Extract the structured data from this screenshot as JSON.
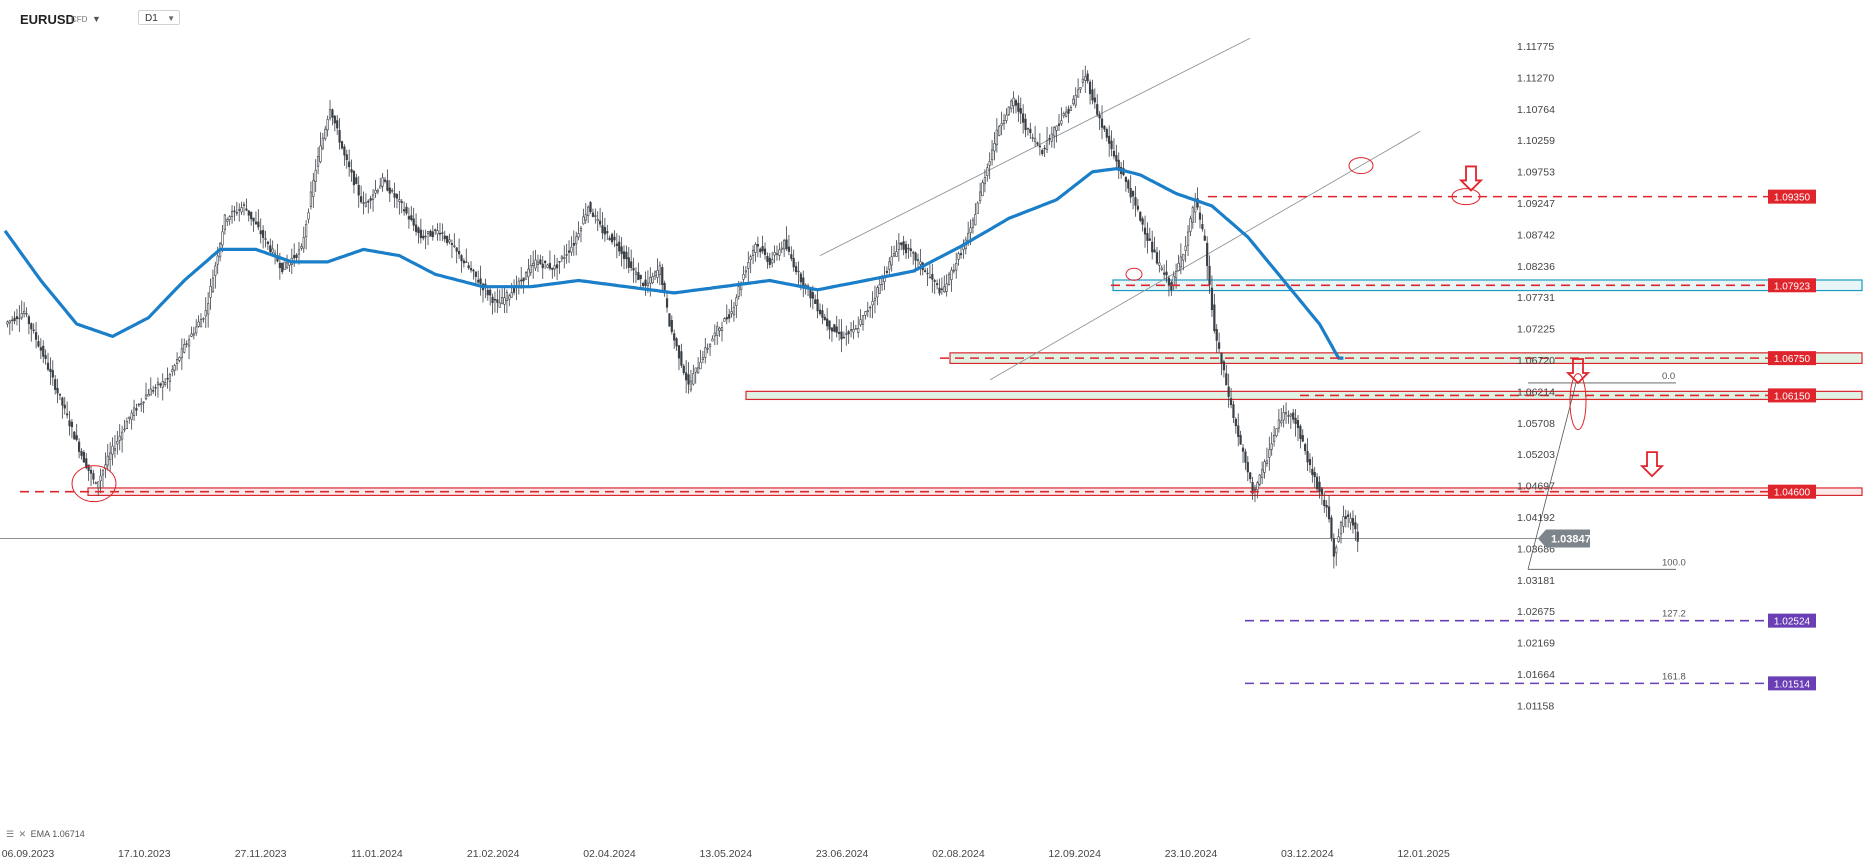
{
  "header": {
    "symbol": "EURUSD",
    "instrument_type": "CFD",
    "timeframe": "D1"
  },
  "legend": {
    "indicator": "EMA",
    "value": "1.06714"
  },
  "chart_data": {
    "type": "candlestick",
    "ylim": [
      1.0115,
      1.1225
    ],
    "y_ticks": [
      "1.11775",
      "1.11270",
      "1.10764",
      "1.10259",
      "1.09753",
      "1.09247",
      "1.08742",
      "1.08236",
      "1.07731",
      "1.07225",
      "1.06720",
      "1.06214",
      "1.05708",
      "1.05203",
      "1.04697",
      "1.04192",
      "1.03686",
      "1.03181",
      "1.02675",
      "1.02169",
      "1.01664",
      "1.01158"
    ],
    "x_ticks": [
      "06.09.2023",
      "17.10.2023",
      "27.11.2023",
      "11.01.2024",
      "21.02.2024",
      "02.04.2024",
      "13.05.2024",
      "23.06.2024",
      "02.08.2024",
      "12.09.2024",
      "23.10.2024",
      "03.12.2024",
      "12.01.2025"
    ],
    "current_price": "1.03847",
    "price_levels": [
      {
        "value": 1.0935,
        "label": "1.09350",
        "color": "#e0242b",
        "style": "dashed"
      },
      {
        "value": 1.07923,
        "label": "1.07923",
        "color": "#e0242b",
        "style": "dashed"
      },
      {
        "value": 1.0675,
        "label": "1.06750",
        "color": "#e0242b",
        "style": "dashed"
      },
      {
        "value": 1.0615,
        "label": "1.06150",
        "color": "#e0242b",
        "style": "dashed"
      },
      {
        "value": 1.046,
        "label": "1.04600",
        "color": "#e0242b",
        "style": "dashed"
      },
      {
        "value": 1.02524,
        "label": "1.02524",
        "color": "#6a3fb5",
        "style": "dashed"
      },
      {
        "value": 1.01514,
        "label": "1.01514",
        "color": "#6a3fb5",
        "style": "dashed"
      }
    ],
    "fibonacci": {
      "labels": [
        "0.0",
        "100.0",
        "127.2",
        "161.8"
      ],
      "high": 1.0635,
      "low": 1.0335
    },
    "ohlc_anchors": [
      [
        0,
        1.073
      ],
      [
        8,
        1.075
      ],
      [
        16,
        1.068
      ],
      [
        24,
        1.06
      ],
      [
        32,
        1.052
      ],
      [
        38,
        1.047
      ],
      [
        44,
        1.052
      ],
      [
        52,
        1.058
      ],
      [
        60,
        1.062
      ],
      [
        68,
        1.064
      ],
      [
        76,
        1.07
      ],
      [
        84,
        1.075
      ],
      [
        92,
        1.09
      ],
      [
        100,
        1.092
      ],
      [
        108,
        1.087
      ],
      [
        116,
        1.082
      ],
      [
        124,
        1.085
      ],
      [
        130,
        1.098
      ],
      [
        136,
        1.108
      ],
      [
        142,
        1.1
      ],
      [
        150,
        1.092
      ],
      [
        158,
        1.096
      ],
      [
        166,
        1.092
      ],
      [
        174,
        1.087
      ],
      [
        182,
        1.088
      ],
      [
        190,
        1.084
      ],
      [
        198,
        1.08
      ],
      [
        206,
        1.076
      ],
      [
        214,
        1.079
      ],
      [
        222,
        1.083
      ],
      [
        230,
        1.082
      ],
      [
        238,
        1.086
      ],
      [
        244,
        1.092
      ],
      [
        250,
        1.088
      ],
      [
        256,
        1.086
      ],
      [
        262,
        1.082
      ],
      [
        268,
        1.079
      ],
      [
        274,
        1.082
      ],
      [
        278,
        1.073
      ],
      [
        282,
        1.068
      ],
      [
        286,
        1.063
      ],
      [
        292,
        1.068
      ],
      [
        298,
        1.072
      ],
      [
        304,
        1.075
      ],
      [
        308,
        1.08
      ],
      [
        314,
        1.086
      ],
      [
        320,
        1.083
      ],
      [
        326,
        1.086
      ],
      [
        332,
        1.081
      ],
      [
        338,
        1.077
      ],
      [
        344,
        1.073
      ],
      [
        350,
        1.071
      ],
      [
        356,
        1.072
      ],
      [
        362,
        1.076
      ],
      [
        368,
        1.081
      ],
      [
        374,
        1.086
      ],
      [
        380,
        1.084
      ],
      [
        386,
        1.081
      ],
      [
        392,
        1.078
      ],
      [
        398,
        1.083
      ],
      [
        404,
        1.088
      ],
      [
        410,
        1.097
      ],
      [
        416,
        1.105
      ],
      [
        422,
        1.109
      ],
      [
        428,
        1.104
      ],
      [
        434,
        1.101
      ],
      [
        440,
        1.105
      ],
      [
        446,
        1.108
      ],
      [
        452,
        1.113
      ],
      [
        458,
        1.106
      ],
      [
        464,
        1.1
      ],
      [
        470,
        1.095
      ],
      [
        476,
        1.089
      ],
      [
        482,
        1.083
      ],
      [
        488,
        1.079
      ],
      [
        494,
        1.086
      ],
      [
        498,
        1.093
      ],
      [
        502,
        1.086
      ],
      [
        506,
        1.072
      ],
      [
        510,
        1.065
      ],
      [
        514,
        1.058
      ],
      [
        518,
        1.052
      ],
      [
        522,
        1.046
      ],
      [
        526,
        1.049
      ],
      [
        530,
        1.054
      ],
      [
        534,
        1.058
      ],
      [
        538,
        1.059
      ],
      [
        542,
        1.055
      ],
      [
        546,
        1.05
      ],
      [
        550,
        1.046
      ],
      [
        554,
        1.042
      ],
      [
        556,
        1.036
      ],
      [
        560,
        1.042
      ],
      [
        564,
        1.041
      ],
      [
        566,
        1.0385
      ]
    ],
    "ema_anchors": [
      [
        0,
        1.088
      ],
      [
        15,
        1.08
      ],
      [
        30,
        1.073
      ],
      [
        45,
        1.071
      ],
      [
        60,
        1.074
      ],
      [
        75,
        1.08
      ],
      [
        90,
        1.085
      ],
      [
        105,
        1.085
      ],
      [
        120,
        1.083
      ],
      [
        135,
        1.083
      ],
      [
        150,
        1.085
      ],
      [
        165,
        1.084
      ],
      [
        180,
        1.081
      ],
      [
        200,
        1.079
      ],
      [
        220,
        1.079
      ],
      [
        240,
        1.08
      ],
      [
        260,
        1.079
      ],
      [
        280,
        1.078
      ],
      [
        300,
        1.079
      ],
      [
        320,
        1.08
      ],
      [
        340,
        1.0785
      ],
      [
        360,
        1.08
      ],
      [
        380,
        1.0815
      ],
      [
        400,
        1.0855
      ],
      [
        420,
        1.09
      ],
      [
        440,
        1.093
      ],
      [
        455,
        1.0975
      ],
      [
        465,
        1.098
      ],
      [
        475,
        1.097
      ],
      [
        490,
        1.094
      ],
      [
        505,
        1.092
      ],
      [
        520,
        1.087
      ],
      [
        535,
        1.08
      ],
      [
        550,
        1.073
      ],
      [
        558,
        1.0675
      ]
    ],
    "ema_end_index": 560
  }
}
